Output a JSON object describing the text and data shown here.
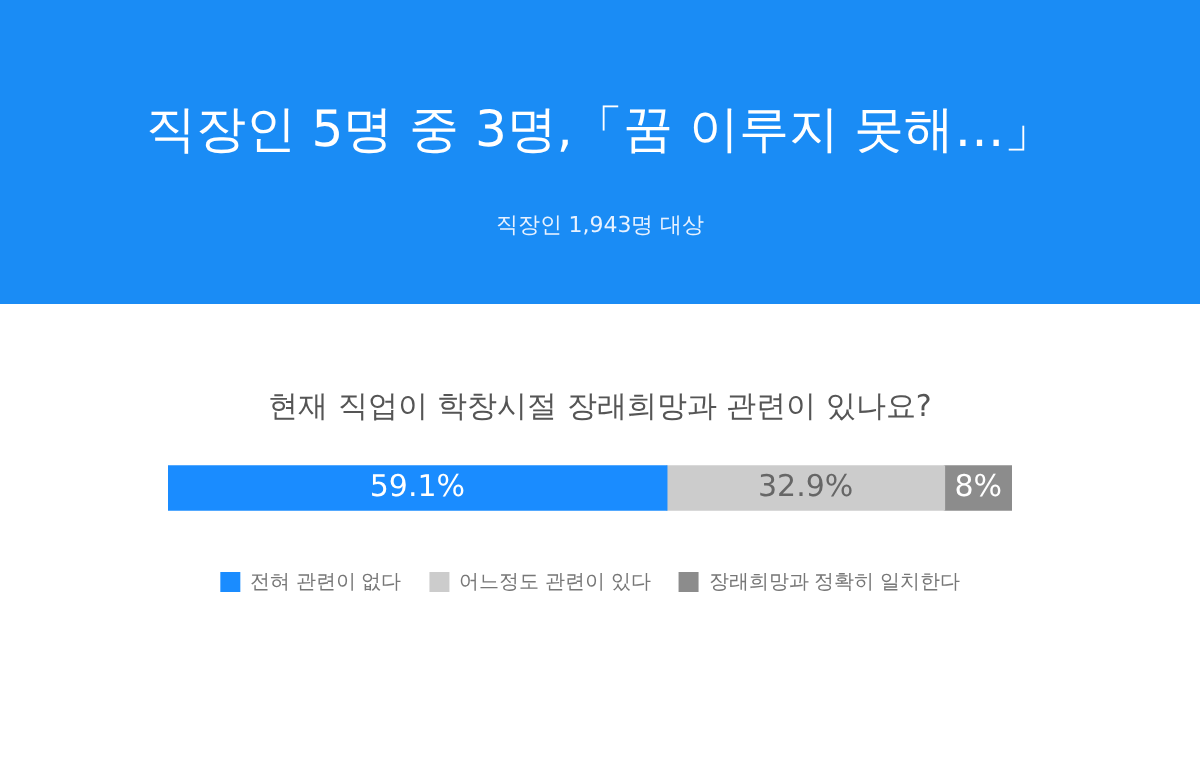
{
  "chart_data": {
    "type": "bar",
    "orientation": "horizontal",
    "stacked": true,
    "title": "직장인 5명 중 3명,「꿈 이루지 못해…」",
    "subtitle": "직장인 1,943명 대상",
    "annotations": [
      "현재 직업이 학창시절 장래희망과 관련이 있나요?"
    ],
    "categories": [
      null
    ],
    "tick_labels": false,
    "grid": false,
    "legend": "bottom",
    "series": [
      {
        "name": "전혀 관련이 없다",
        "color": "#1a8cff",
        "values": [
          59.1
        ],
        "value_labels": [
          "59.1%"
        ]
      },
      {
        "name": "어느정도 관련이 있다",
        "color": "#cccccc",
        "values": [
          32.9
        ],
        "value_labels": [
          "32.9%"
        ]
      },
      {
        "name": "장래희망과 정확히 일치한다",
        "color": "#8c8c8c",
        "values": [
          8
        ],
        "value_labels": [
          "8%"
        ]
      }
    ]
  }
}
